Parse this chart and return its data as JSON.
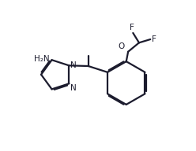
{
  "bg_color": "#ffffff",
  "bond_color": "#1c1c2e",
  "text_color": "#1c1c2e",
  "line_width": 1.6,
  "font_size": 7.5,
  "figsize": [
    2.48,
    1.92
  ],
  "dpi": 100,
  "xlim": [
    0,
    10
  ],
  "ylim": [
    0,
    8
  ]
}
